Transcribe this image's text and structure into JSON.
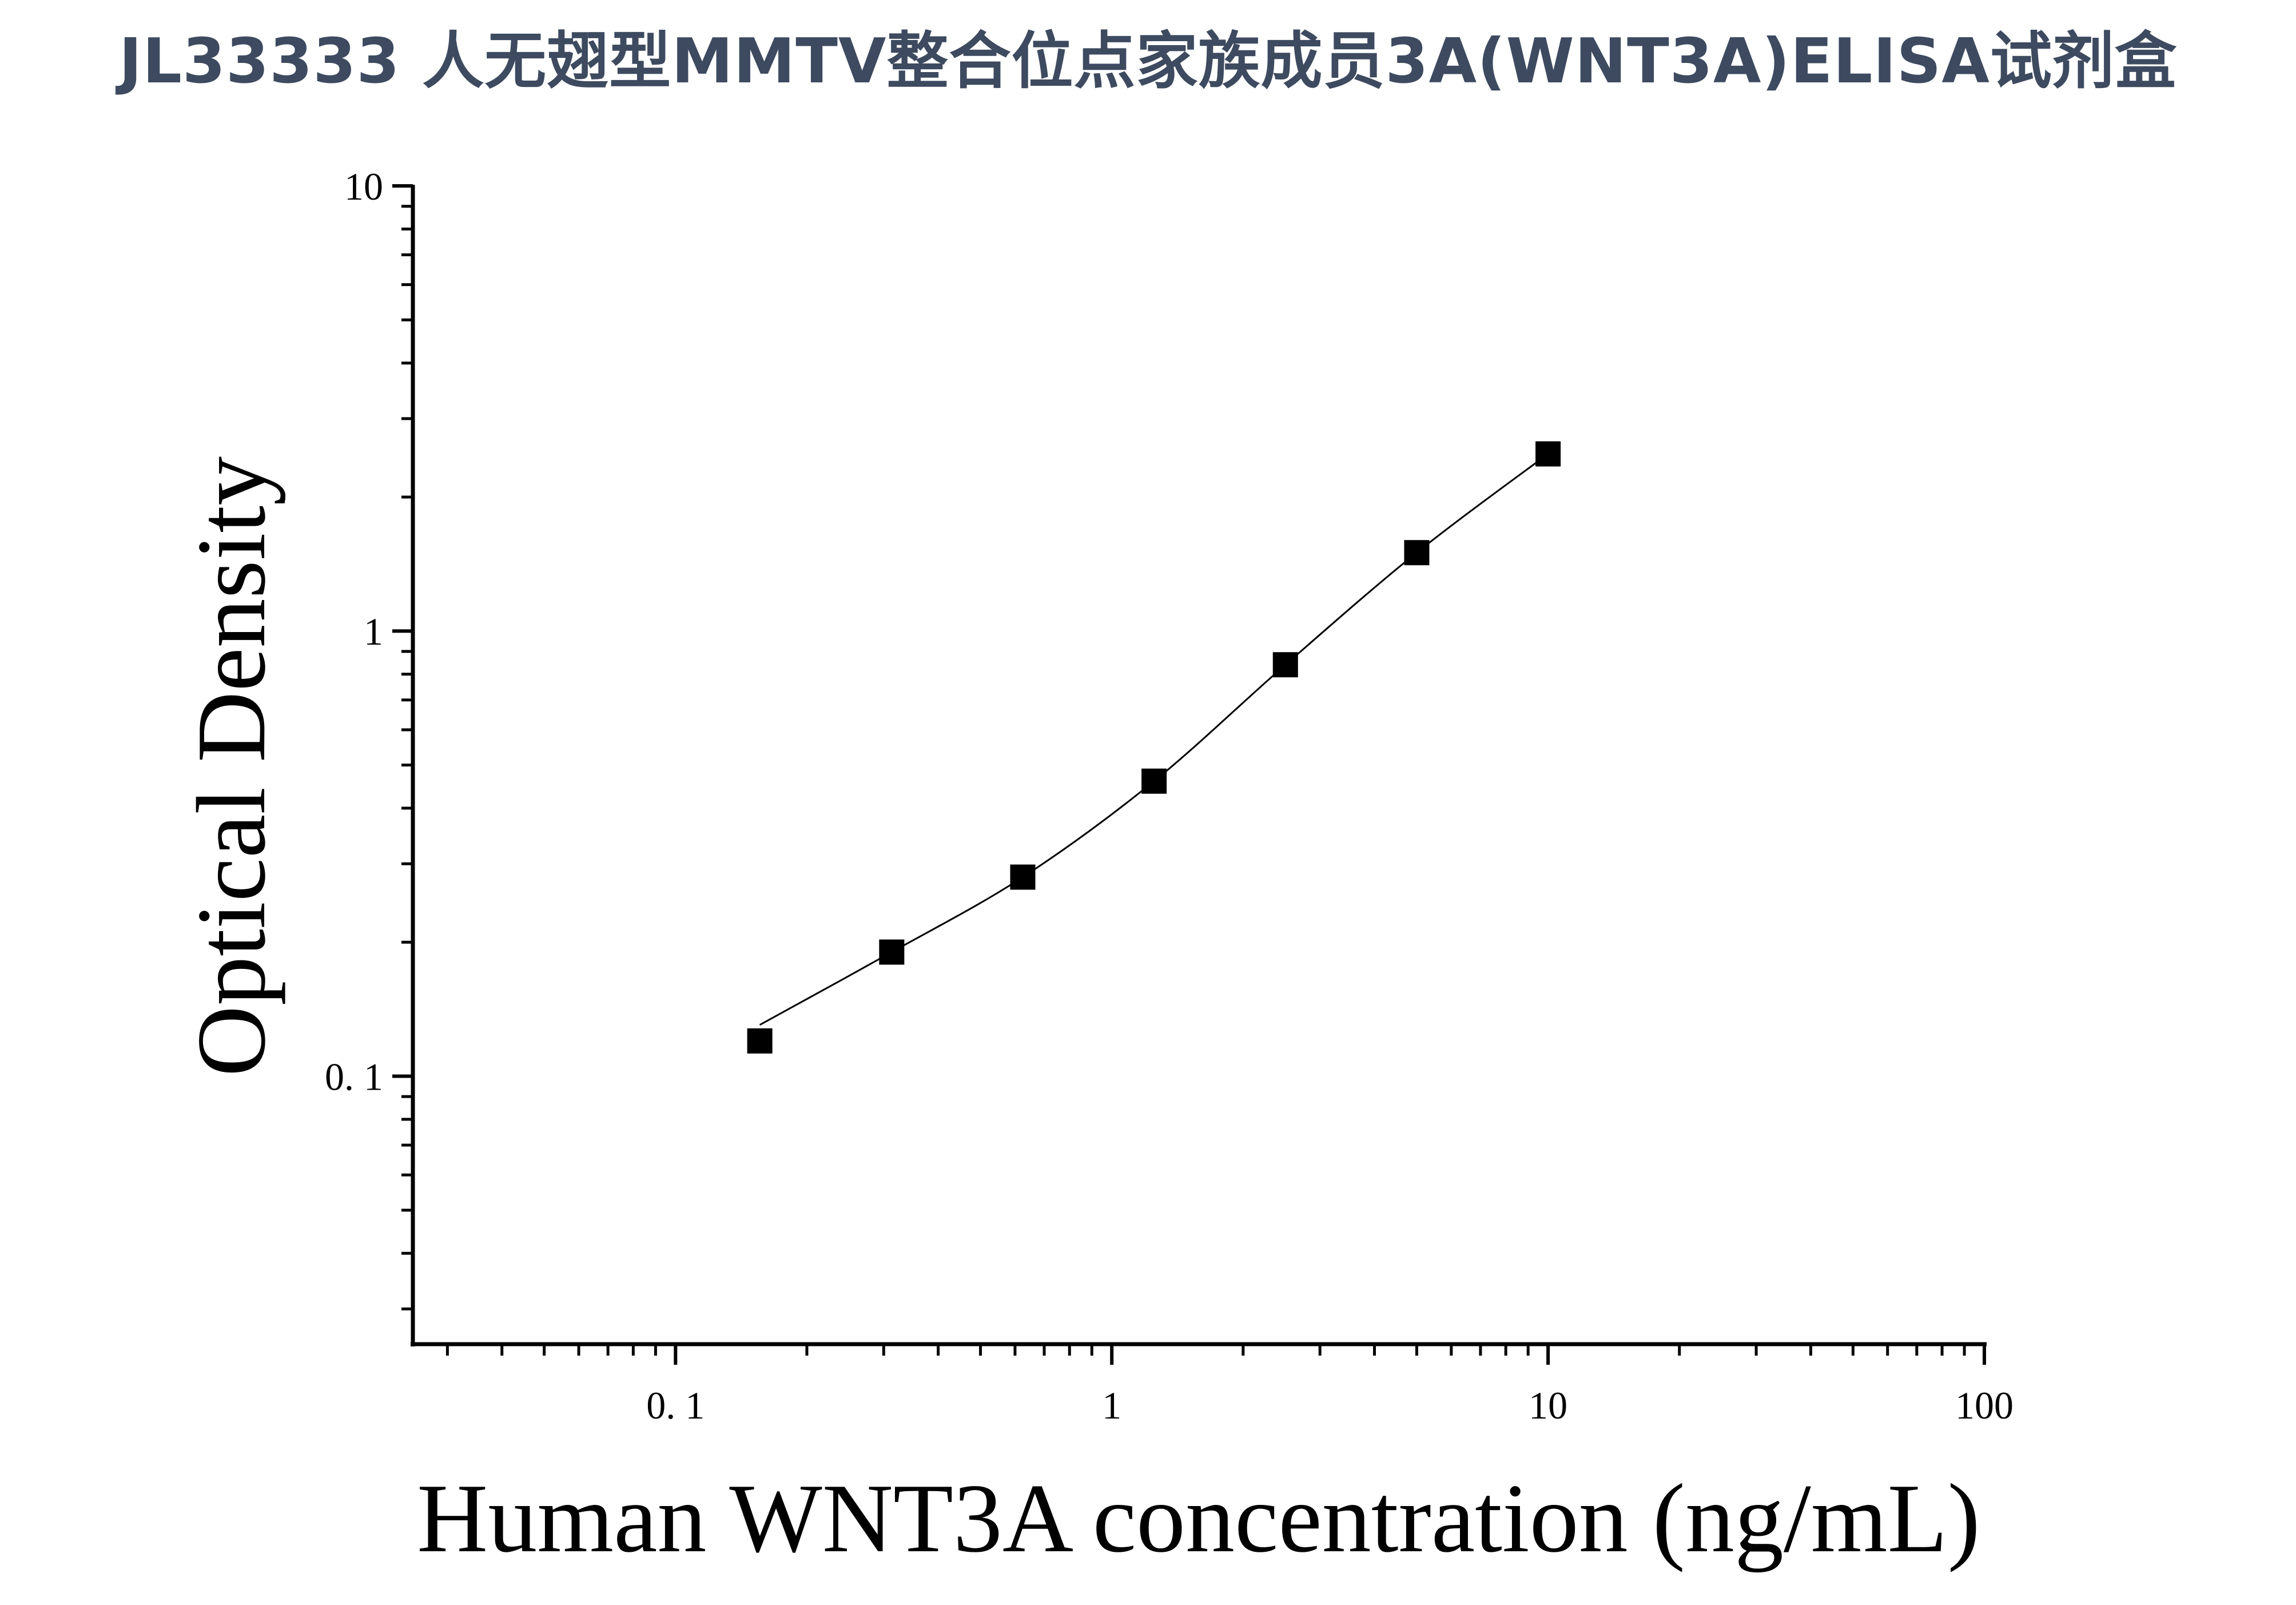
{
  "chart_data": {
    "type": "scatter",
    "title": "JL33333 人无翅型MMTV整合位点家族成员3A(WNT3A)ELISA试剂盒",
    "xlabel": "Human WNT3A concentration (ng/mL)",
    "ylabel": "Optical Density",
    "x_scale": "log",
    "y_scale": "log",
    "xlim": [
      0.025,
      100
    ],
    "ylim": [
      0.025,
      10
    ],
    "x_ticks": [
      {
        "value": 0.1,
        "label": "0. 1"
      },
      {
        "value": 1,
        "label": "1"
      },
      {
        "value": 10,
        "label": "10"
      },
      {
        "value": 100,
        "label": "100"
      }
    ],
    "y_ticks": [
      {
        "value": 0.1,
        "label": "0. 1"
      },
      {
        "value": 1,
        "label": "1"
      },
      {
        "value": 10,
        "label": "10"
      }
    ],
    "grid": false,
    "legend": "none",
    "marker": "square",
    "colors": {
      "marker": "#000000",
      "curve": "#000000",
      "axis": "#000000",
      "title": "#3d4a5f"
    },
    "series": [
      {
        "x": [
          0.156,
          0.313,
          0.625,
          1.25,
          2.5,
          5,
          10
        ],
        "y": [
          0.12,
          0.19,
          0.28,
          0.46,
          0.84,
          1.5,
          2.5
        ]
      }
    ],
    "fit_curve": true
  }
}
